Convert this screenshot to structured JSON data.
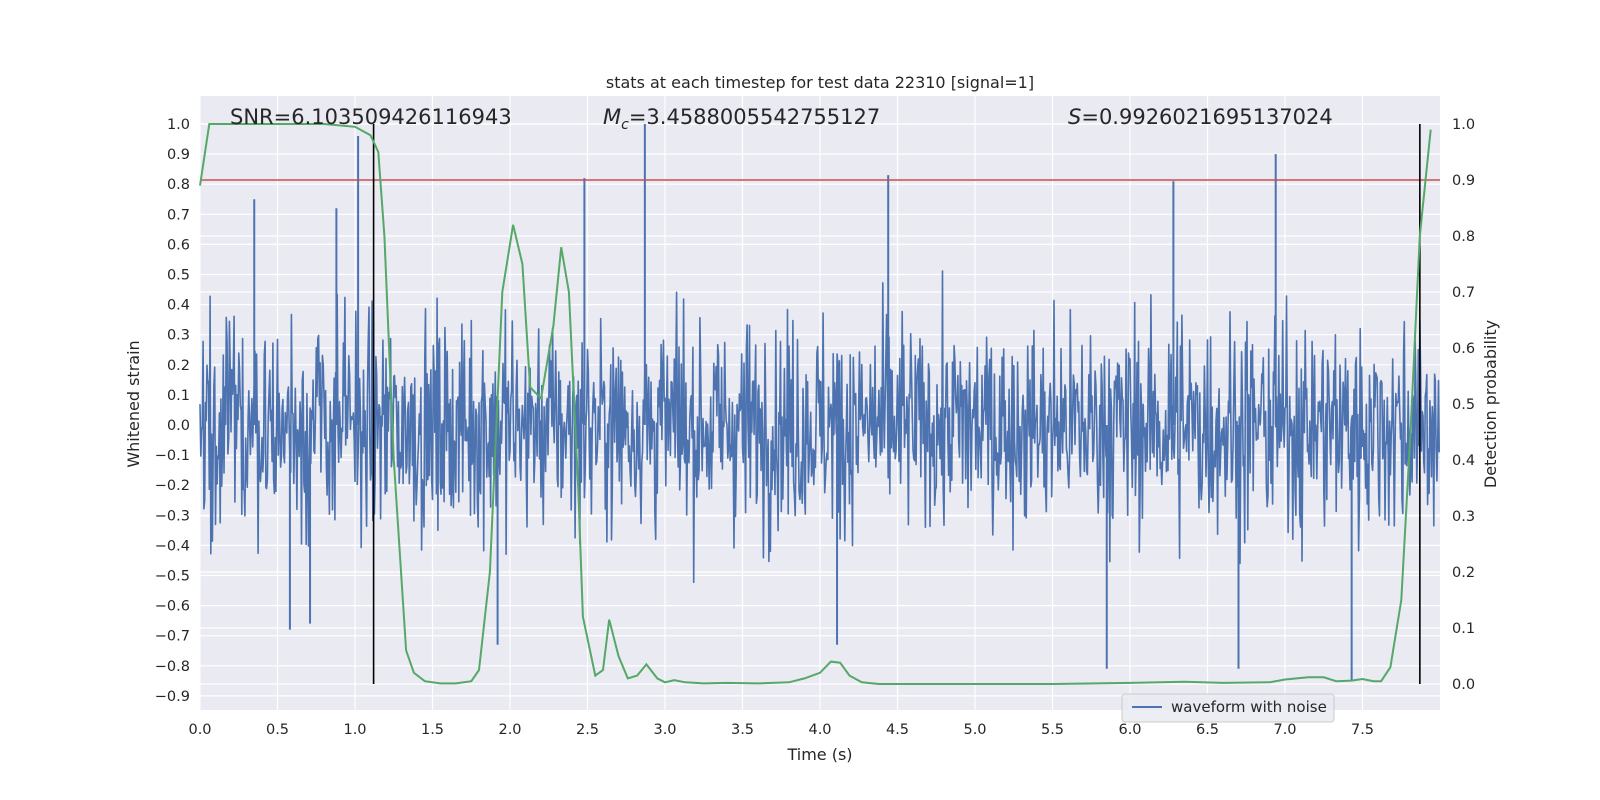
{
  "chart_data": {
    "type": "line",
    "title": "stats at each timestep for test data 22310 [signal=1]",
    "xlabel": "Time (s)",
    "ylabel": "Whitened strain",
    "y2label": "Detection probability",
    "xlim": [
      0.0,
      8.0
    ],
    "ylim": [
      -0.95,
      1.05
    ],
    "y2lim": [
      -0.05,
      1.0
    ],
    "xticks": [
      "0.0",
      "0.5",
      "1.0",
      "1.5",
      "2.0",
      "2.5",
      "3.0",
      "3.5",
      "4.0",
      "4.5",
      "5.0",
      "5.5",
      "6.0",
      "6.5",
      "7.0",
      "7.5"
    ],
    "yticks": [
      "1.0",
      "0.9",
      "0.8",
      "0.7",
      "0.6",
      "0.5",
      "0.4",
      "0.3",
      "0.2",
      "0.1",
      "0.0",
      "-0.1",
      "-0.2",
      "-0.3",
      "-0.4",
      "-0.5",
      "-0.6",
      "-0.7",
      "-0.8",
      "-0.9"
    ],
    "y2ticks": [
      "1.0",
      "0.9",
      "0.8",
      "0.7",
      "0.6",
      "0.5",
      "0.4",
      "0.3",
      "0.2",
      "0.1",
      "0.0"
    ],
    "annotations": {
      "snr": "SNR=6.103509426116943",
      "mc_symbol": "M",
      "mc_sub": "c",
      "mc_value": "=3.4588005542755127",
      "s_symbol": "S",
      "s_value": "=0.9926021695137024"
    },
    "legend": {
      "label": "waveform with noise",
      "placement": "lower-right"
    },
    "threshold_line": {
      "value": 0.9,
      "axis": "right",
      "color": "#c44e52"
    },
    "vertical_lines": [
      1.12,
      7.87
    ],
    "series": [
      {
        "name": "waveform with noise",
        "color": "#4c72b0",
        "description_values": {
          "envelope_upper": [
            0.45,
            0.55,
            0.6,
            0.55,
            0.5,
            0.6,
            0.55,
            0.6,
            0.65,
            0.6,
            0.55,
            0.6,
            0.6,
            0.6,
            0.55,
            0.6,
            0.55,
            0.6,
            0.55,
            0.55,
            0.55,
            0.6,
            0.65,
            0.6,
            0.6,
            0.6,
            0.6,
            0.55,
            0.6,
            0.6,
            0.6,
            0.6
          ],
          "envelope_lower": [
            -0.45,
            -0.5,
            -0.55,
            -0.55,
            -0.5,
            -0.55,
            -0.55,
            -0.55,
            -0.6,
            -0.55,
            -0.55,
            -0.6,
            -0.55,
            -0.55,
            -0.5,
            -0.55,
            -0.55,
            -0.55,
            -0.55,
            -0.55,
            -0.55,
            -0.55,
            -0.6,
            -0.55,
            -0.6,
            -0.55,
            -0.55,
            -0.55,
            -0.6,
            -0.6,
            -0.6,
            -0.55
          ],
          "spikes": [
            {
              "x": 0.35,
              "y": 0.75
            },
            {
              "x": 0.88,
              "y": 0.72
            },
            {
              "x": 1.02,
              "y": 0.96
            },
            {
              "x": 2.48,
              "y": 0.82
            },
            {
              "x": 2.87,
              "y": 1.0
            },
            {
              "x": 4.44,
              "y": 0.83
            },
            {
              "x": 6.28,
              "y": 0.81
            },
            {
              "x": 6.94,
              "y": 0.9
            },
            {
              "x": 0.58,
              "y": -0.68
            },
            {
              "x": 0.71,
              "y": -0.66
            },
            {
              "x": 1.92,
              "y": -0.73
            },
            {
              "x": 4.11,
              "y": -0.73
            },
            {
              "x": 5.85,
              "y": -0.81
            },
            {
              "x": 6.7,
              "y": -0.81
            },
            {
              "x": 7.43,
              "y": -0.85
            }
          ]
        }
      },
      {
        "name": "",
        "axis": "right",
        "color": "#55a868",
        "x": [
          0.0,
          0.06,
          0.2,
          0.4,
          0.6,
          0.8,
          1.0,
          1.1,
          1.15,
          1.19,
          1.25,
          1.33,
          1.38,
          1.45,
          1.55,
          1.65,
          1.75,
          1.8,
          1.87,
          1.95,
          2.02,
          2.08,
          2.13,
          2.2,
          2.28,
          2.33,
          2.38,
          2.44,
          2.47,
          2.55,
          2.6,
          2.64,
          2.7,
          2.76,
          2.82,
          2.88,
          2.95,
          3.0,
          3.06,
          3.13,
          3.25,
          3.4,
          3.6,
          3.8,
          3.9,
          4.0,
          4.07,
          4.13,
          4.19,
          4.27,
          4.38,
          4.5,
          5.0,
          5.5,
          6.0,
          6.2,
          6.35,
          6.6,
          6.9,
          7.0,
          7.15,
          7.25,
          7.33,
          7.43,
          7.5,
          7.57,
          7.62,
          7.68,
          7.75,
          7.81,
          7.87,
          7.94
        ],
        "y": [
          0.89,
          1.0,
          1.0,
          1.0,
          1.0,
          1.0,
          0.995,
          0.98,
          0.95,
          0.8,
          0.4,
          0.06,
          0.02,
          0.005,
          0.001,
          0.001,
          0.005,
          0.025,
          0.2,
          0.7,
          0.82,
          0.75,
          0.53,
          0.51,
          0.64,
          0.78,
          0.7,
          0.35,
          0.12,
          0.015,
          0.025,
          0.115,
          0.05,
          0.01,
          0.015,
          0.035,
          0.01,
          0.003,
          0.007,
          0.003,
          0.001,
          0.002,
          0.001,
          0.003,
          0.01,
          0.02,
          0.04,
          0.038,
          0.015,
          0.003,
          0.0,
          0.0,
          0.0,
          0.0,
          0.002,
          0.003,
          0.004,
          0.002,
          0.003,
          0.008,
          0.012,
          0.012,
          0.005,
          0.006,
          0.009,
          0.005,
          0.005,
          0.03,
          0.15,
          0.45,
          0.8,
          0.99
        ]
      }
    ]
  }
}
